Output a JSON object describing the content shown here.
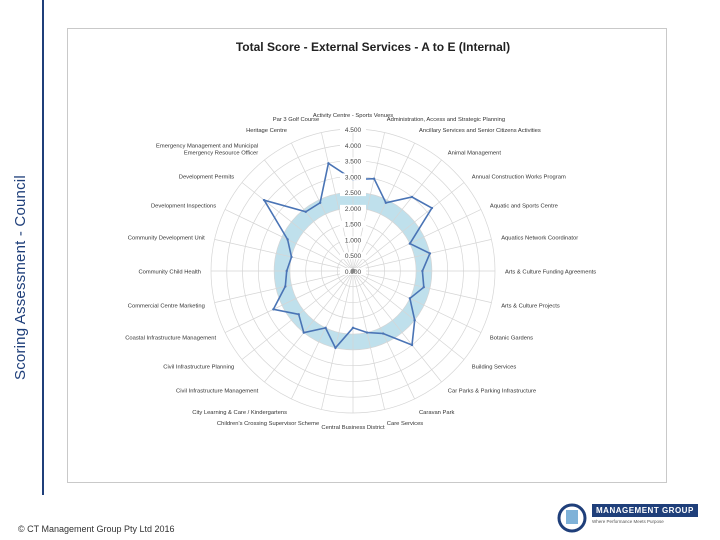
{
  "sidebar": {
    "title": "Scoring Assessment - Council"
  },
  "footer": {
    "copyright": "© CT Management Group Pty Ltd 2016"
  },
  "logo": {
    "name": "MANAGEMENT GROUP",
    "tagline": "Where Performance Meets Purpose"
  },
  "colors": {
    "band": "#bfe0ec",
    "line": "#4a74b5",
    "grid": "#d5d5d5",
    "frame_accent": "#1f3f7a"
  },
  "chart_data": {
    "type": "radar",
    "title": "Total Score - External Services - A to E (Internal)",
    "rmax": 4.5,
    "tick_labels": [
      "0.000",
      "0.500",
      "1.000",
      "1.500",
      "2.000",
      "2.500",
      "3.000",
      "3.500",
      "4.000",
      "4.500"
    ],
    "band": [
      2.0,
      2.5
    ],
    "categories": [
      "Activity Centre - Sports Venues",
      "Administration, Access and Strategic Planning",
      "Ancillary Services and Senior Citizens Activities",
      "Animal Management",
      "Annual Construction Works Program",
      "Aquatic and Sports Centre",
      "Aquatics Network Coordinator",
      "Arts & Culture Funding Agreements",
      "Arts & Culture Projects",
      "Botanic Gardens",
      "Building Services",
      "Car Parks & Parking Infrastructure",
      "Caravan Park",
      "Care Services",
      "Central Business District",
      "Children's Crossing Supervisor Scheme",
      "City Learning & Care / Kindergartens",
      "Civil Infrastructure Management",
      "Civil Infrastructure Planning",
      "Coastal Infrastructure Management",
      "Commercial Centre Marketing",
      "Community Child Health",
      "Community Development Unit",
      "Development Inspections",
      "Development Permits",
      "Emergency Management and Municipal Emergency Resource Officer",
      "Heritage Centre",
      "Par 3 Golf Course"
    ],
    "values": [
      2.9,
      3.0,
      2.4,
      3.0,
      3.2,
      2.0,
      2.5,
      2.2,
      2.3,
      2.0,
      2.5,
      3.0,
      2.2,
      2.0,
      1.8,
      2.5,
      2.0,
      2.5,
      2.2,
      2.8,
      2.2,
      2.1,
      2.0,
      2.3,
      3.6,
      2.4,
      2.4,
      3.5
    ]
  }
}
